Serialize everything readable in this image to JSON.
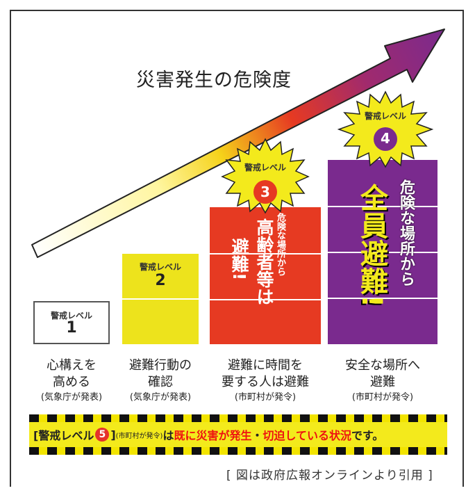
{
  "title": "災害発生の危険度",
  "level_label": "警戒レベル",
  "levels": [
    {
      "num": "1",
      "desc_line1": "心構えを",
      "desc_line2": "高める",
      "source": "(気象庁が発表)"
    },
    {
      "num": "2",
      "desc_line1": "避難行動の",
      "desc_line2": "確認",
      "source": "(気象庁が発表)"
    },
    {
      "num": "3",
      "desc_line1": "避難に時間を",
      "desc_line2": "要する人は避難",
      "source": "(市町村が発令)",
      "callout_big": "高齢者等は",
      "callout_big2": "避難!",
      "callout_small": "危険な場所から"
    },
    {
      "num": "4",
      "desc_line1": "安全な場所へ",
      "desc_line2": "避難",
      "source": "(市町村が発令)",
      "callout_big": "全員避難!",
      "callout_small": "危険な場所から"
    }
  ],
  "banner": {
    "prefix": "[警戒レベル",
    "num": "5",
    "suffix": "]",
    "issuer": "(市町村が発令)",
    "ha": "は",
    "red1": "既に災害が発生",
    "sep": "・",
    "red2": "切迫している状況",
    "tail": "です。"
  },
  "caption": "[ 図は政府広報オンラインより引用 ]",
  "colors": {
    "level2": "#ede31c",
    "level3": "#e63a22",
    "level4": "#7a2a8e",
    "starburst": "#f3ea1c"
  }
}
